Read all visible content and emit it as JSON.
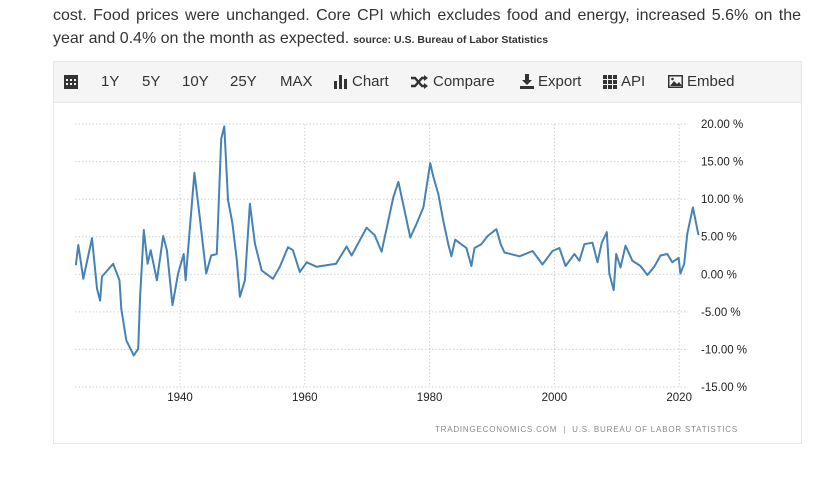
{
  "article": {
    "text": "cost. Food prices were unchanged. Core CPI which excludes food and energy, increased 5.6% on the year and 0.4% on the month as expected.",
    "source": "source: U.S. Bureau of Labor Statistics"
  },
  "toolbar": {
    "calendar_icon": "calendar-icon",
    "ranges": [
      "1Y",
      "5Y",
      "10Y",
      "25Y",
      "MAX"
    ],
    "chart_label": "Chart",
    "compare_label": "Compare",
    "export_label": "Export",
    "api_label": "API",
    "embed_label": "Embed"
  },
  "footer": "TRADINGECONOMICS.COM  |  U.S. BUREAU OF LABOR STATISTICS",
  "chart_data": {
    "type": "line",
    "line_color": "#4682b4",
    "grid": true,
    "y_axis_position": "right",
    "xlim": [
      1923.2,
      2023.8
    ],
    "ylim": [
      -15,
      20
    ],
    "x_ticks": [
      1940,
      1960,
      1980,
      2000,
      2020
    ],
    "x_tick_labels": [
      "1940",
      "1960",
      "1980",
      "2000",
      "2020"
    ],
    "y_ticks": [
      20,
      15,
      10,
      5,
      0,
      -5,
      -10,
      -15
    ],
    "y_tick_labels": [
      "20.00 %",
      "15.00 %",
      "10.00 %",
      "5.00 %",
      "0.00 %",
      "-5.00 %",
      "-10.00 %",
      "-15.00 %"
    ],
    "series": [
      {
        "x": [
          1923.3,
          1923.7,
          1924.5,
          1925.9,
          1926.7,
          1927.2,
          1927.5,
          1929.3,
          1930.3,
          1930.6,
          1931.4,
          1932.6,
          1933.3,
          1933.6,
          1934.2,
          1934.8,
          1935.3,
          1936.3,
          1937.3,
          1937.9,
          1938.8,
          1939.7,
          1940.6,
          1940.9,
          1942.3,
          1943.1,
          1944.2,
          1945.0,
          1945.9,
          1946.6,
          1947.1,
          1947.7,
          1948.4,
          1949.1,
          1949.6,
          1950.4,
          1951.2,
          1952.0,
          1953.1,
          1954.9,
          1956.0,
          1957.3,
          1958.1,
          1959.2,
          1960.3,
          1961.9,
          1965.0,
          1966.7,
          1967.5,
          1969.9,
          1971.2,
          1972.3,
          1974.2,
          1975.0,
          1975.8,
          1976.9,
          1977.9,
          1979.0,
          1980.1,
          1980.6,
          1981.4,
          1982.2,
          1983.0,
          1983.5,
          1984.1,
          1985.9,
          1986.7,
          1987.2,
          1988.3,
          1989.3,
          1990.7,
          1991.4,
          1992.0,
          1994.4,
          1996.5,
          1998.1,
          1999.7,
          2000.8,
          2001.8,
          2003.2,
          2004.0,
          2004.8,
          2006.1,
          2006.9,
          2007.6,
          2008.4,
          2008.8,
          2009.5,
          2009.9,
          2010.6,
          2011.4,
          2012.5,
          2013.8,
          2014.9,
          2016.0,
          2017.0,
          2018.1,
          2018.9,
          2019.9,
          2020.2,
          2020.8,
          2021.3,
          2022.2,
          2023.1
        ],
        "y": [
          1.2,
          3.9,
          -0.6,
          4.8,
          -1.9,
          -3.5,
          -0.3,
          1.4,
          -0.8,
          -4.6,
          -8.8,
          -10.8,
          -9.9,
          -3.0,
          5.9,
          1.4,
          3.2,
          -0.8,
          5.1,
          3.2,
          -4.1,
          0.1,
          2.7,
          -0.8,
          13.5,
          8.1,
          0.1,
          2.5,
          2.7,
          18.0,
          19.7,
          9.9,
          6.8,
          1.9,
          -3.0,
          -0.8,
          9.4,
          4.1,
          0.5,
          -0.6,
          1.0,
          3.6,
          3.2,
          0.3,
          1.6,
          1.0,
          1.4,
          3.7,
          2.5,
          6.2,
          5.2,
          3.0,
          10.3,
          12.3,
          9.2,
          4.9,
          6.7,
          8.9,
          14.8,
          13.0,
          10.7,
          7.1,
          4.0,
          2.4,
          4.6,
          3.5,
          1.1,
          3.5,
          4.0,
          5.1,
          6.0,
          4.0,
          2.9,
          2.4,
          3.1,
          1.3,
          3.1,
          3.5,
          1.1,
          2.7,
          1.8,
          4.0,
          4.2,
          1.6,
          4.2,
          5.6,
          0.1,
          -2.1,
          2.7,
          0.9,
          3.8,
          1.8,
          1.1,
          -0.1,
          1.0,
          2.5,
          2.7,
          1.6,
          2.2,
          0.1,
          1.4,
          5.4,
          8.9,
          5.2
        ]
      }
    ]
  }
}
